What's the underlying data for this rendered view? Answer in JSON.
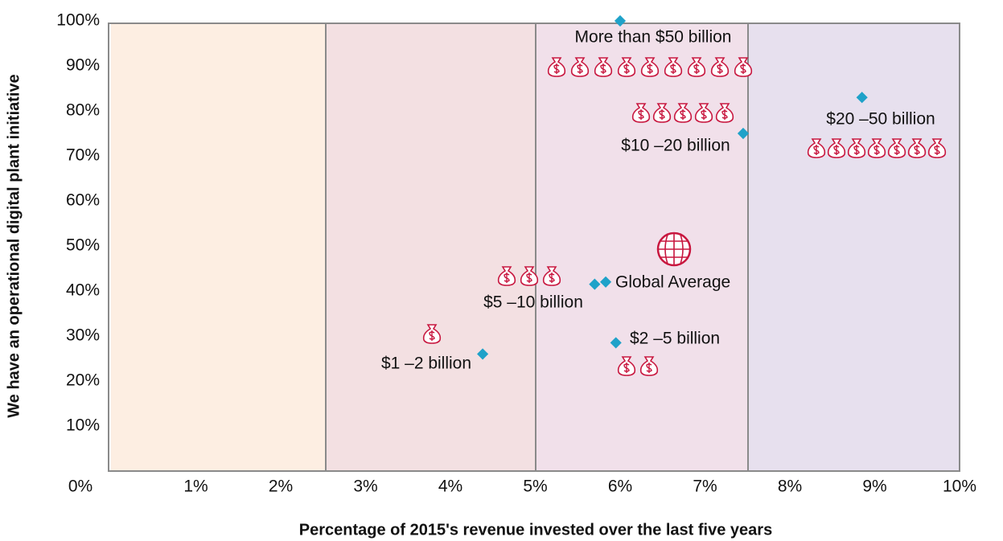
{
  "chart_data": {
    "type": "scatter",
    "x_label": "Percentage of 2015's revenue invested over the last five years",
    "y_label": "We have an operational  digital plant initiative",
    "x": [
      6.0,
      8.85,
      7.45,
      5.7,
      5.83,
      5.95,
      4.38
    ],
    "series": [
      {
        "color": "#1fa2c9",
        "values": [
          100,
          83,
          75,
          41.5,
          42,
          28.5,
          26
        ]
      }
    ],
    "point_labels": [
      "More than  $50 billion",
      "$20 –50 billion",
      "$10 –20 billion",
      "$5 –10 billion",
      "Global Average",
      "$2 –5 billion",
      "$1 –2 billion"
    ],
    "xlim": [
      0,
      10
    ],
    "xticks": [
      {
        "value": 0,
        "label": "0%"
      },
      {
        "value": 1,
        "label": "1%"
      },
      {
        "value": 2,
        "label": "2%"
      },
      {
        "value": 3,
        "label": "3%"
      },
      {
        "value": 4,
        "label": "4%"
      },
      {
        "value": 5,
        "label": "5%"
      },
      {
        "value": 6,
        "label": "6%"
      },
      {
        "value": 7,
        "label": "7%"
      },
      {
        "value": 8,
        "label": "8%"
      },
      {
        "value": 9,
        "label": "9%"
      },
      {
        "value": 10,
        "label": "10%"
      }
    ],
    "ylim": [
      0,
      100
    ],
    "yticks": [
      {
        "value": 10,
        "label": "10%"
      },
      {
        "value": 20,
        "label": "20%"
      },
      {
        "value": 30,
        "label": "30%"
      },
      {
        "value": 40,
        "label": "40%"
      },
      {
        "value": 50,
        "label": "50%"
      },
      {
        "value": 60,
        "label": "60%"
      },
      {
        "value": 70,
        "label": "70%"
      },
      {
        "value": 80,
        "label": "80%"
      },
      {
        "value": 90,
        "label": "90%"
      },
      {
        "value": 100,
        "label": "100%"
      }
    ]
  }
}
